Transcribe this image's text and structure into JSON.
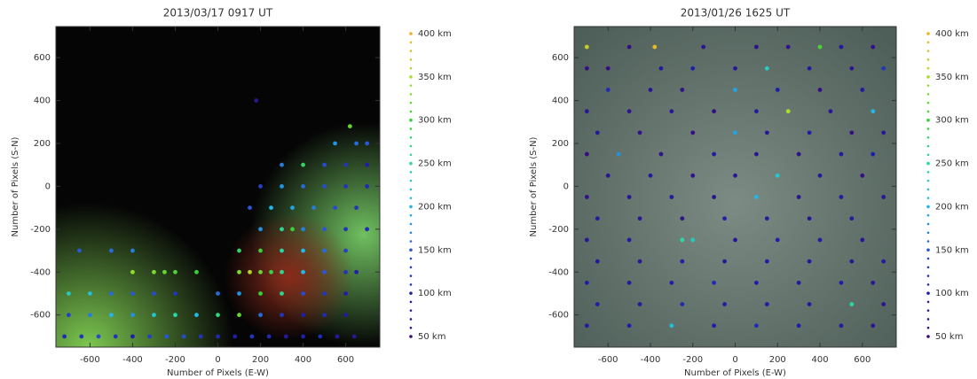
{
  "chart_data": [
    {
      "type": "scatter",
      "title": "2013/03/17 0917 UT",
      "x_label": "Number of Pixels (E-W)",
      "y_label": "Number of Pixels (S-N)",
      "xlim": [
        -760,
        760
      ],
      "ylim": [
        -750,
        745
      ],
      "xticks": [
        -600,
        -400,
        -200,
        0,
        200,
        400,
        600
      ],
      "yticks": [
        -600,
        -400,
        -200,
        0,
        200,
        400,
        600
      ],
      "colorbar_ticks": [
        {
          "value": 50,
          "label": "50 km"
        },
        {
          "value": 100,
          "label": "100 km"
        },
        {
          "value": 150,
          "label": "150 km"
        },
        {
          "value": 200,
          "label": "200 km"
        },
        {
          "value": 250,
          "label": "250 km"
        },
        {
          "value": 300,
          "label": "300 km"
        },
        {
          "value": 350,
          "label": "350 km"
        },
        {
          "value": 400,
          "label": "400 km"
        }
      ],
      "colormap": [
        "#3c0a78",
        "#1e1ea8",
        "#2858d8",
        "#20b8e8",
        "#28d8a8",
        "#38d038",
        "#a8e028",
        "#f0b020"
      ],
      "points": [
        [
          -720,
          -700,
          110
        ],
        [
          -640,
          -700,
          120
        ],
        [
          -560,
          -700,
          140
        ],
        [
          -480,
          -700,
          120
        ],
        [
          -400,
          -700,
          100
        ],
        [
          -320,
          -700,
          130
        ],
        [
          -240,
          -700,
          150
        ],
        [
          -160,
          -700,
          140
        ],
        [
          -80,
          -700,
          120
        ],
        [
          0,
          -700,
          110
        ],
        [
          80,
          -700,
          100
        ],
        [
          160,
          -700,
          120
        ],
        [
          240,
          -700,
          110
        ],
        [
          320,
          -700,
          90
        ],
        [
          400,
          -700,
          100
        ],
        [
          480,
          -700,
          110
        ],
        [
          560,
          -700,
          90
        ],
        [
          640,
          -700,
          80
        ],
        [
          -700,
          -600,
          130
        ],
        [
          -600,
          -600,
          170
        ],
        [
          -500,
          -600,
          200
        ],
        [
          -400,
          -600,
          180
        ],
        [
          -300,
          -600,
          220
        ],
        [
          -200,
          -600,
          250
        ],
        [
          -100,
          -600,
          200
        ],
        [
          0,
          -600,
          270
        ],
        [
          100,
          -600,
          320
        ],
        [
          200,
          -600,
          160
        ],
        [
          300,
          -600,
          120
        ],
        [
          400,
          -600,
          100
        ],
        [
          500,
          -600,
          110
        ],
        [
          600,
          -600,
          90
        ],
        [
          -700,
          -500,
          230
        ],
        [
          -600,
          -500,
          210
        ],
        [
          -500,
          -500,
          160
        ],
        [
          -400,
          -500,
          150
        ],
        [
          -300,
          -500,
          140
        ],
        [
          -200,
          -500,
          120
        ],
        [
          0,
          -500,
          160
        ],
        [
          100,
          -500,
          180
        ],
        [
          200,
          -500,
          300
        ],
        [
          300,
          -500,
          260
        ],
        [
          400,
          -500,
          140
        ],
        [
          500,
          -500,
          120
        ],
        [
          600,
          -500,
          100
        ],
        [
          -400,
          -400,
          340
        ],
        [
          -300,
          -400,
          330
        ],
        [
          -250,
          -400,
          320
        ],
        [
          -200,
          -400,
          310
        ],
        [
          -100,
          -400,
          300
        ],
        [
          100,
          -400,
          330
        ],
        [
          150,
          -400,
          360
        ],
        [
          200,
          -400,
          320
        ],
        [
          250,
          -400,
          290
        ],
        [
          300,
          -400,
          260
        ],
        [
          400,
          -400,
          200
        ],
        [
          500,
          -400,
          150
        ],
        [
          600,
          -400,
          120
        ],
        [
          650,
          -400,
          100
        ],
        [
          -650,
          -300,
          150
        ],
        [
          -500,
          -300,
          160
        ],
        [
          -400,
          -300,
          170
        ],
        [
          100,
          -300,
          280
        ],
        [
          200,
          -300,
          300
        ],
        [
          300,
          -300,
          250
        ],
        [
          400,
          -300,
          200
        ],
        [
          500,
          -300,
          160
        ],
        [
          600,
          -300,
          130
        ],
        [
          200,
          -200,
          180
        ],
        [
          300,
          -200,
          260
        ],
        [
          350,
          -200,
          300
        ],
        [
          400,
          -200,
          170
        ],
        [
          500,
          -200,
          150
        ],
        [
          600,
          -200,
          120
        ],
        [
          700,
          -200,
          110
        ],
        [
          150,
          -100,
          150
        ],
        [
          250,
          -100,
          200
        ],
        [
          350,
          -100,
          190
        ],
        [
          450,
          -100,
          170
        ],
        [
          550,
          -100,
          140
        ],
        [
          650,
          -100,
          120
        ],
        [
          200,
          0,
          130
        ],
        [
          300,
          0,
          180
        ],
        [
          400,
          0,
          160
        ],
        [
          500,
          0,
          140
        ],
        [
          600,
          0,
          120
        ],
        [
          700,
          0,
          110
        ],
        [
          300,
          100,
          170
        ],
        [
          400,
          100,
          280
        ],
        [
          500,
          100,
          140
        ],
        [
          600,
          100,
          120
        ],
        [
          700,
          100,
          100
        ],
        [
          550,
          200,
          180
        ],
        [
          650,
          200,
          160
        ],
        [
          700,
          200,
          150
        ],
        [
          620,
          280,
          320
        ],
        [
          180,
          400,
          80
        ]
      ]
    },
    {
      "type": "scatter",
      "title": "2013/01/26 1625 UT",
      "x_label": "Number of Pixels (E-W)",
      "y_label": "Number of Pixels (S-N)",
      "xlim": [
        -760,
        760
      ],
      "ylim": [
        -750,
        745
      ],
      "xticks": [
        -600,
        -400,
        -200,
        0,
        200,
        400,
        600
      ],
      "yticks": [
        -600,
        -400,
        -200,
        0,
        200,
        400,
        600
      ],
      "colorbar_ticks": [
        {
          "value": 50,
          "label": "50 km"
        },
        {
          "value": 100,
          "label": "100 km"
        },
        {
          "value": 150,
          "label": "150 km"
        },
        {
          "value": 200,
          "label": "200 km"
        },
        {
          "value": 250,
          "label": "250 km"
        },
        {
          "value": 300,
          "label": "300 km"
        },
        {
          "value": 350,
          "label": "350 km"
        },
        {
          "value": 400,
          "label": "400 km"
        }
      ],
      "colormap": [
        "#3c0a78",
        "#1e1ea8",
        "#2858d8",
        "#20b8e8",
        "#28d8a8",
        "#38d038",
        "#a8e028",
        "#f0b020"
      ],
      "points": [
        [
          -700,
          650,
          370
        ],
        [
          -500,
          650,
          60
        ],
        [
          -380,
          650,
          390
        ],
        [
          -150,
          650,
          80
        ],
        [
          100,
          650,
          70
        ],
        [
          250,
          650,
          70
        ],
        [
          400,
          650,
          310
        ],
        [
          500,
          650,
          90
        ],
        [
          650,
          650,
          70
        ],
        [
          -700,
          550,
          60
        ],
        [
          -600,
          550,
          60
        ],
        [
          -350,
          550,
          90
        ],
        [
          -200,
          550,
          100
        ],
        [
          0,
          550,
          80
        ],
        [
          150,
          550,
          230
        ],
        [
          350,
          550,
          90
        ],
        [
          550,
          550,
          80
        ],
        [
          700,
          550,
          120
        ],
        [
          -600,
          450,
          110
        ],
        [
          -400,
          450,
          80
        ],
        [
          -250,
          450,
          70
        ],
        [
          0,
          450,
          190
        ],
        [
          200,
          450,
          100
        ],
        [
          400,
          450,
          60
        ],
        [
          600,
          450,
          90
        ],
        [
          -700,
          350,
          80
        ],
        [
          -500,
          350,
          70
        ],
        [
          -300,
          350,
          80
        ],
        [
          -100,
          350,
          60
        ],
        [
          100,
          350,
          90
        ],
        [
          250,
          350,
          350
        ],
        [
          450,
          350,
          80
        ],
        [
          650,
          350,
          200
        ],
        [
          -650,
          250,
          90
        ],
        [
          -450,
          250,
          70
        ],
        [
          -200,
          250,
          60
        ],
        [
          0,
          250,
          190
        ],
        [
          150,
          250,
          80
        ],
        [
          350,
          250,
          100
        ],
        [
          550,
          250,
          60
        ],
        [
          700,
          250,
          80
        ],
        [
          -700,
          150,
          60
        ],
        [
          -550,
          150,
          180
        ],
        [
          -350,
          150,
          70
        ],
        [
          -100,
          150,
          90
        ],
        [
          100,
          150,
          80
        ],
        [
          300,
          150,
          70
        ],
        [
          500,
          150,
          90
        ],
        [
          650,
          150,
          100
        ],
        [
          -600,
          50,
          80
        ],
        [
          -400,
          50,
          90
        ],
        [
          -200,
          50,
          70
        ],
        [
          0,
          50,
          80
        ],
        [
          200,
          50,
          220
        ],
        [
          400,
          50,
          90
        ],
        [
          600,
          50,
          60
        ],
        [
          -700,
          -50,
          70
        ],
        [
          -500,
          -50,
          80
        ],
        [
          -300,
          -50,
          90
        ],
        [
          -100,
          -50,
          70
        ],
        [
          100,
          -50,
          200
        ],
        [
          300,
          -50,
          80
        ],
        [
          500,
          -50,
          90
        ],
        [
          700,
          -50,
          80
        ],
        [
          -650,
          -150,
          90
        ],
        [
          -450,
          -150,
          80
        ],
        [
          -250,
          -150,
          70
        ],
        [
          -50,
          -150,
          100
        ],
        [
          150,
          -150,
          90
        ],
        [
          350,
          -150,
          80
        ],
        [
          550,
          -150,
          90
        ],
        [
          -700,
          -250,
          80
        ],
        [
          -500,
          -250,
          90
        ],
        [
          -250,
          -250,
          250
        ],
        [
          -200,
          -250,
          230
        ],
        [
          0,
          -250,
          80
        ],
        [
          200,
          -250,
          100
        ],
        [
          400,
          -250,
          90
        ],
        [
          600,
          -250,
          80
        ],
        [
          -650,
          -350,
          90
        ],
        [
          -450,
          -350,
          80
        ],
        [
          -250,
          -350,
          100
        ],
        [
          -50,
          -350,
          90
        ],
        [
          150,
          -350,
          100
        ],
        [
          350,
          -350,
          90
        ],
        [
          550,
          -350,
          80
        ],
        [
          700,
          -350,
          90
        ],
        [
          -700,
          -450,
          100
        ],
        [
          -500,
          -450,
          90
        ],
        [
          -300,
          -450,
          100
        ],
        [
          -100,
          -450,
          110
        ],
        [
          100,
          -450,
          100
        ],
        [
          300,
          -450,
          90
        ],
        [
          500,
          -450,
          100
        ],
        [
          650,
          -450,
          80
        ],
        [
          -650,
          -550,
          100
        ],
        [
          -450,
          -550,
          90
        ],
        [
          -250,
          -550,
          110
        ],
        [
          -50,
          -550,
          100
        ],
        [
          150,
          -550,
          100
        ],
        [
          350,
          -550,
          90
        ],
        [
          550,
          -550,
          250
        ],
        [
          700,
          -550,
          70
        ],
        [
          -700,
          -650,
          90
        ],
        [
          -500,
          -650,
          100
        ],
        [
          -300,
          -650,
          210
        ],
        [
          -100,
          -650,
          100
        ],
        [
          100,
          -650,
          110
        ],
        [
          300,
          -650,
          100
        ],
        [
          500,
          -650,
          90
        ],
        [
          650,
          -650,
          80
        ]
      ]
    }
  ]
}
